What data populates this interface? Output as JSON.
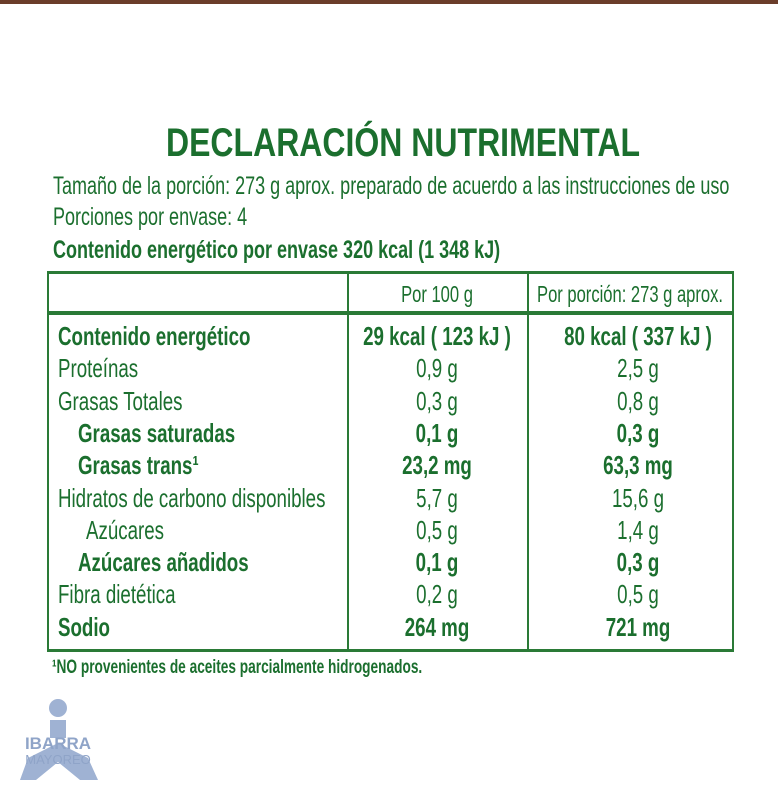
{
  "title": "DECLARACIÓN NUTRIMENTAL",
  "info": [
    "Tamaño de la porción: 273 g aprox. preparado de acuerdo a las instrucciones de uso",
    "Porciones por envase: 4",
    "Contenido energético por envase 320 kcal (1 348 kJ)"
  ],
  "table": {
    "header": [
      "Por 100 g",
      "Por porción: 273 g aprox."
    ],
    "rows": [
      [
        "Contenido energético",
        "29 kcal ( 123 kJ )",
        "80 kcal ( 337 kJ )"
      ],
      [
        "Proteínas",
        "0,9 g",
        "2,5 g"
      ],
      [
        "Grasas Totales",
        "0,3 g",
        "0,8 g"
      ],
      [
        "Grasas saturadas",
        "0,1 g",
        "0,3 g"
      ],
      [
        "Grasas trans¹",
        "23,2 mg",
        "63,3 mg"
      ],
      [
        "Hidratos de carbono disponibles",
        "5,7 g",
        "15,6 g"
      ],
      [
        "Azúcares",
        "0,5 g",
        "1,4 g"
      ],
      [
        "Azúcares añadidos",
        "0,1 g",
        "0,3 g"
      ],
      [
        "Fibra dietética",
        "0,2 g",
        "0,5 g"
      ],
      [
        "Sodio",
        "264 mg",
        "721 mg"
      ]
    ]
  },
  "footnote": "¹NO provenientes de aceites parcialmente hidrogenados.",
  "logo": {
    "name": "IBARRA",
    "sub": "MAYOREO"
  }
}
